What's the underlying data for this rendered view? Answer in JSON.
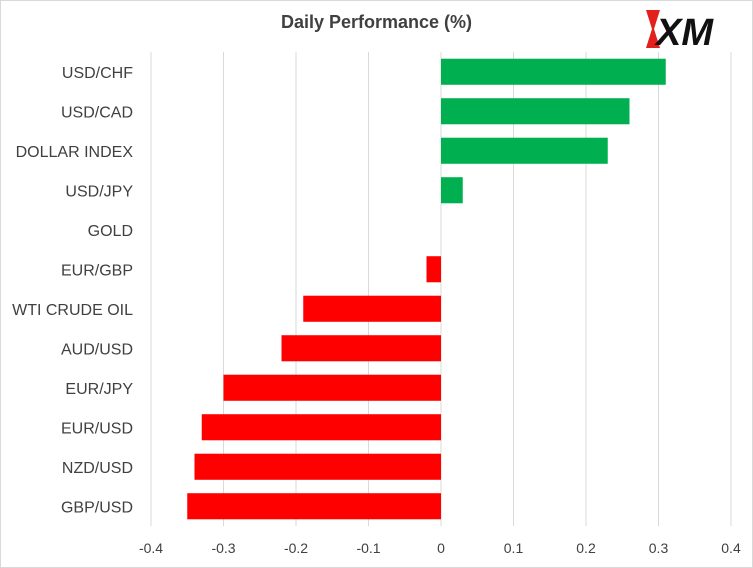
{
  "chart_data": {
    "type": "bar",
    "orientation": "horizontal",
    "title": "Daily Performance (%)",
    "categories": [
      "USD/CHF",
      "USD/CAD",
      "DOLLAR INDEX",
      "USD/JPY",
      "GOLD",
      "EUR/GBP",
      "WTI CRUDE OIL",
      "AUD/USD",
      "EUR/JPY",
      "EUR/USD",
      "NZD/USD",
      "GBP/USD"
    ],
    "values": [
      0.31,
      0.26,
      0.23,
      0.03,
      0.0,
      -0.02,
      -0.19,
      -0.22,
      -0.3,
      -0.33,
      -0.34,
      -0.35
    ],
    "xlim": [
      -0.4,
      0.4
    ],
    "xticks": [
      "-0.4",
      "-0.3",
      "-0.2",
      "-0.1",
      "0",
      "0.1",
      "0.2",
      "0.3",
      "0.4"
    ],
    "grid": "vertical",
    "colors": {
      "positive": "#00b050",
      "negative": "#ff0000",
      "grid": "#d9d9d9"
    }
  },
  "logo": {
    "text": "XM",
    "accent": "#e3201b"
  }
}
